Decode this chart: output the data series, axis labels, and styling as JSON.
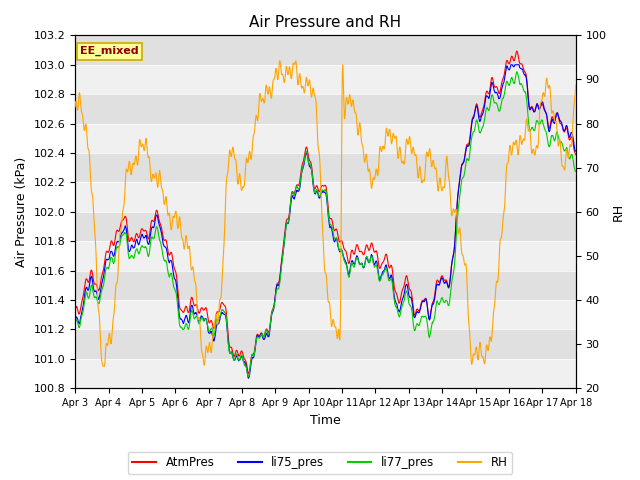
{
  "title": "Air Pressure and RH",
  "xlabel": "Time",
  "ylabel_left": "Air Pressure (kPa)",
  "ylabel_right": "RH",
  "ylim_left": [
    100.8,
    103.2
  ],
  "ylim_right": [
    20,
    100
  ],
  "yticks_left": [
    100.8,
    101.0,
    101.2,
    101.4,
    101.6,
    101.8,
    102.0,
    102.2,
    102.4,
    102.6,
    102.8,
    103.0,
    103.2
  ],
  "yticks_right": [
    20,
    30,
    40,
    50,
    60,
    70,
    80,
    90,
    100
  ],
  "xtick_labels": [
    "Apr 3",
    "Apr 4",
    "Apr 5",
    "Apr 6",
    "Apr 7",
    "Apr 8",
    "Apr 9",
    "Apr 10",
    "Apr 11",
    "Apr 12",
    "Apr 13",
    "Apr 14",
    "Apr 15",
    "Apr 16",
    "Apr 17",
    "Apr 18"
  ],
  "legend_labels": [
    "AtmPres",
    "li75_pres",
    "li77_pres",
    "RH"
  ],
  "legend_colors": [
    "#FF0000",
    "#0000FF",
    "#00CC00",
    "#FFA500"
  ],
  "line_colors": [
    "#FF0000",
    "#0000FF",
    "#00CC00",
    "#FFA500"
  ],
  "annotation_text": "EE_mixed",
  "annotation_bg": "#FFFF99",
  "annotation_border": "#CCAA00",
  "title_fontsize": 11,
  "axis_fontsize": 9,
  "tick_fontsize": 8,
  "n_points": 1500,
  "seed": 42
}
